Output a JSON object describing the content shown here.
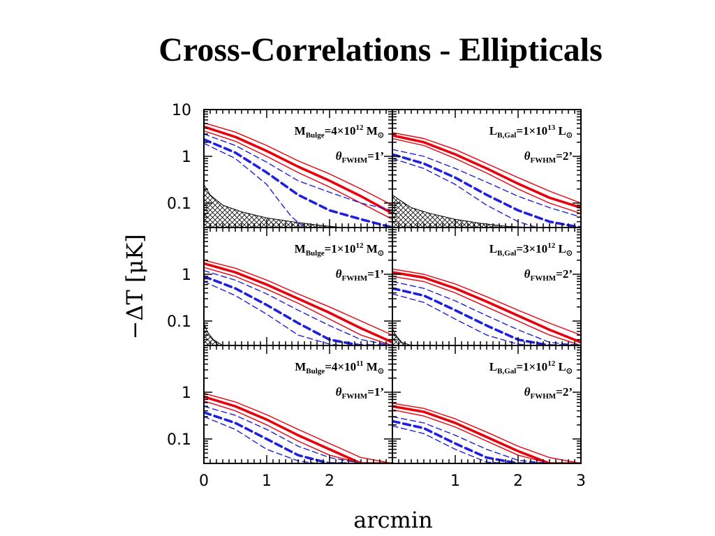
{
  "slide": {
    "title": "Cross-Correlations - Ellipticals"
  },
  "chart_data": {
    "type": "line",
    "layout": "3 rows x 2 columns of panels sharing axes",
    "xlabel": "arcmin",
    "ylabel": "−ΔT [μK]",
    "xlim": [
      0,
      3
    ],
    "ylim": [
      0.03,
      10
    ],
    "yscale": "log",
    "xticks": [
      {
        "value": 0,
        "label": "0"
      },
      {
        "value": 1,
        "label": "1"
      },
      {
        "value": 2,
        "label": "2"
      },
      {
        "value": 3,
        "label": "3"
      }
    ],
    "yticks": [
      {
        "value": 10,
        "label": "10"
      },
      {
        "value": 1,
        "label": "1"
      },
      {
        "value": 0.1,
        "label": "0.1"
      }
    ],
    "colors": {
      "model_solid": "#e8000b",
      "model_dashed": "#1f1fe0",
      "noise_hatch": "#000000"
    },
    "panels": [
      {
        "row": 0,
        "col": 0,
        "annotation": {
          "var": "M",
          "sub": "Bulge",
          "mantissa": "4",
          "exponent": "12",
          "unit": "M",
          "beam": "1"
        },
        "series": [
          {
            "style": "solid-thick",
            "x": [
              0,
              0.5,
              1,
              1.5,
              2,
              2.5,
              3
            ],
            "y": [
              4.3,
              2.6,
              1.3,
              0.6,
              0.3,
              0.14,
              0.06
            ]
          },
          {
            "style": "solid-thin",
            "x": [
              0,
              0.5,
              1,
              1.5,
              2,
              2.5,
              3
            ],
            "y": [
              5.2,
              3.3,
              1.7,
              0.8,
              0.42,
              0.2,
              0.09
            ]
          },
          {
            "style": "solid-thin",
            "x": [
              0,
              0.5,
              1,
              1.5,
              2,
              2.5,
              3
            ],
            "y": [
              3.5,
              2.1,
              1.0,
              0.45,
              0.22,
              0.1,
              0.045
            ]
          },
          {
            "style": "dashed-thick",
            "x": [
              0,
              0.5,
              1,
              1.5,
              2,
              2.5,
              3
            ],
            "y": [
              2.3,
              1.2,
              0.45,
              0.15,
              0.07,
              0.045,
              0.03
            ]
          },
          {
            "style": "dashed-thin",
            "x": [
              0,
              0.5,
              1,
              1.5,
              2,
              2.5,
              3
            ],
            "y": [
              3.0,
              1.7,
              0.75,
              0.3,
              0.17,
              0.1,
              0.07
            ]
          },
          {
            "style": "dashed-thin",
            "x": [
              0,
              0.5,
              1,
              1.2,
              1.4,
              1.6
            ],
            "y": [
              1.9,
              0.9,
              0.25,
              0.11,
              0.05,
              0.03
            ]
          }
        ],
        "noise_band": {
          "x": [
            0,
            0.1,
            0.3,
            0.6,
            1.0,
            1.4,
            1.8,
            2.2
          ],
          "upper": [
            0.25,
            0.15,
            0.09,
            0.065,
            0.048,
            0.04,
            0.034,
            0.03
          ]
        }
      },
      {
        "row": 0,
        "col": 1,
        "annotation": {
          "var": "L",
          "sub": "B,Gal",
          "mantissa": "1",
          "exponent": "13",
          "unit": "L",
          "beam": "2"
        },
        "series": [
          {
            "style": "solid-thick",
            "x": [
              0,
              0.5,
              1,
              1.5,
              2,
              2.5,
              3
            ],
            "y": [
              2.8,
              2.0,
              1.1,
              0.55,
              0.26,
              0.13,
              0.08
            ]
          },
          {
            "style": "solid-thin",
            "x": [
              0,
              0.5,
              1,
              1.5,
              2,
              2.5,
              3
            ],
            "y": [
              3.2,
              2.4,
              1.4,
              0.7,
              0.35,
              0.18,
              0.1
            ]
          },
          {
            "style": "solid-thin",
            "x": [
              0,
              0.5,
              1,
              1.5,
              2,
              2.5,
              3
            ],
            "y": [
              2.4,
              1.7,
              0.9,
              0.44,
              0.2,
              0.1,
              0.06
            ]
          },
          {
            "style": "dashed-thick",
            "x": [
              0,
              0.5,
              1,
              1.5,
              2,
              2.5,
              3
            ],
            "y": [
              1.1,
              0.7,
              0.35,
              0.15,
              0.07,
              0.04,
              0.03
            ]
          },
          {
            "style": "dashed-thin",
            "x": [
              0,
              0.5,
              1,
              1.5,
              2,
              2.5,
              3
            ],
            "y": [
              1.4,
              1.0,
              0.55,
              0.28,
              0.14,
              0.08,
              0.05
            ]
          },
          {
            "style": "dashed-thin",
            "x": [
              0,
              0.5,
              1,
              1.5,
              2,
              2.3
            ],
            "y": [
              0.9,
              0.55,
              0.25,
              0.09,
              0.04,
              0.03
            ]
          }
        ],
        "noise_band": {
          "x": [
            0,
            0.1,
            0.3,
            0.6,
            1.0,
            1.4,
            1.8,
            2.2
          ],
          "upper": [
            0.15,
            0.12,
            0.08,
            0.06,
            0.045,
            0.037,
            0.032,
            0.03
          ]
        }
      },
      {
        "row": 1,
        "col": 0,
        "annotation": {
          "var": "M",
          "sub": "Bulge",
          "mantissa": "1",
          "exponent": "12",
          "unit": "M",
          "beam": "1"
        },
        "series": [
          {
            "style": "solid-thick",
            "x": [
              0,
              0.5,
              1,
              1.5,
              2,
              2.5,
              3
            ],
            "y": [
              1.7,
              1.1,
              0.6,
              0.3,
              0.15,
              0.07,
              0.035
            ]
          },
          {
            "style": "solid-thin",
            "x": [
              0,
              0.5,
              1,
              1.5,
              2,
              2.5,
              3
            ],
            "y": [
              2.0,
              1.35,
              0.75,
              0.38,
              0.2,
              0.1,
              0.05
            ]
          },
          {
            "style": "solid-thin",
            "x": [
              0,
              0.5,
              1,
              1.5,
              2,
              2.5,
              3
            ],
            "y": [
              1.4,
              0.9,
              0.48,
              0.24,
              0.11,
              0.05,
              0.03
            ]
          },
          {
            "style": "dashed-thick",
            "x": [
              0,
              0.5,
              1,
              1.5,
              2,
              2.5,
              3
            ],
            "y": [
              0.9,
              0.5,
              0.22,
              0.09,
              0.04,
              0.03,
              0.03
            ]
          },
          {
            "style": "dashed-thin",
            "x": [
              0,
              0.5,
              1,
              1.5,
              2,
              2.5,
              3
            ],
            "y": [
              1.2,
              0.75,
              0.38,
              0.17,
              0.08,
              0.04,
              0.03
            ]
          },
          {
            "style": "dashed-thin",
            "x": [
              0,
              0.5,
              1,
              1.5,
              2,
              2.2
            ],
            "y": [
              0.7,
              0.35,
              0.14,
              0.05,
              0.032,
              0.03
            ]
          }
        ],
        "noise_band": {
          "x": [
            0,
            0.05,
            0.15,
            0.3
          ],
          "upper": [
            0.09,
            0.06,
            0.04,
            0.03
          ]
        }
      },
      {
        "row": 1,
        "col": 1,
        "annotation": {
          "var": "L",
          "sub": "B,Gal",
          "mantissa": "3",
          "exponent": "12",
          "unit": "L",
          "beam": "2"
        },
        "series": [
          {
            "style": "solid-thick",
            "x": [
              0,
              0.5,
              1,
              1.5,
              2,
              2.5,
              3
            ],
            "y": [
              1.1,
              0.85,
              0.5,
              0.26,
              0.13,
              0.065,
              0.035
            ]
          },
          {
            "style": "solid-thin",
            "x": [
              0,
              0.5,
              1,
              1.5,
              2,
              2.5,
              3
            ],
            "y": [
              1.3,
              1.0,
              0.62,
              0.33,
              0.17,
              0.09,
              0.05
            ]
          },
          {
            "style": "solid-thin",
            "x": [
              0,
              0.5,
              1,
              1.5,
              2,
              2.5,
              3
            ],
            "y": [
              0.9,
              0.7,
              0.4,
              0.2,
              0.1,
              0.05,
              0.03
            ]
          },
          {
            "style": "dashed-thick",
            "x": [
              0,
              0.5,
              1,
              1.5,
              2,
              2.5,
              3
            ],
            "y": [
              0.5,
              0.35,
              0.17,
              0.08,
              0.04,
              0.03,
              0.03
            ]
          },
          {
            "style": "dashed-thin",
            "x": [
              0,
              0.5,
              1,
              1.5,
              2,
              2.5,
              3
            ],
            "y": [
              0.7,
              0.5,
              0.27,
              0.13,
              0.065,
              0.035,
              0.03
            ]
          },
          {
            "style": "dashed-thin",
            "x": [
              0,
              0.5,
              1,
              1.5,
              2,
              2.2
            ],
            "y": [
              0.38,
              0.25,
              0.11,
              0.05,
              0.032,
              0.03
            ]
          }
        ],
        "noise_band": {
          "x": [
            0,
            0.05,
            0.15,
            0.3
          ],
          "upper": [
            0.07,
            0.05,
            0.035,
            0.03
          ]
        }
      },
      {
        "row": 2,
        "col": 0,
        "annotation": {
          "var": "M",
          "sub": "Bulge",
          "mantissa": "4",
          "exponent": "11",
          "unit": "M",
          "beam": "1"
        },
        "series": [
          {
            "style": "solid-thick",
            "x": [
              0,
              0.5,
              1,
              1.5,
              2,
              2.5,
              3
            ],
            "y": [
              0.8,
              0.5,
              0.26,
              0.12,
              0.06,
              0.03,
              0.03
            ]
          },
          {
            "style": "solid-thin",
            "x": [
              0,
              0.5,
              1,
              1.5,
              2,
              2.5,
              3
            ],
            "y": [
              0.95,
              0.62,
              0.33,
              0.16,
              0.08,
              0.04,
              0.03
            ]
          },
          {
            "style": "solid-thin",
            "x": [
              0,
              0.5,
              1,
              1.5,
              2,
              2.5,
              3
            ],
            "y": [
              0.65,
              0.4,
              0.2,
              0.09,
              0.045,
              0.03,
              0.03
            ]
          },
          {
            "style": "dashed-thick",
            "x": [
              0,
              0.5,
              1,
              1.5,
              2,
              2.3
            ],
            "y": [
              0.37,
              0.22,
              0.1,
              0.045,
              0.03,
              0.03
            ]
          },
          {
            "style": "dashed-thin",
            "x": [
              0,
              0.5,
              1,
              1.5,
              2,
              2.5
            ],
            "y": [
              0.5,
              0.32,
              0.16,
              0.07,
              0.04,
              0.03
            ]
          },
          {
            "style": "dashed-thin",
            "x": [
              0,
              0.5,
              1,
              1.5,
              1.8
            ],
            "y": [
              0.3,
              0.16,
              0.06,
              0.034,
              0.03
            ]
          }
        ]
      },
      {
        "row": 2,
        "col": 1,
        "annotation": {
          "var": "L",
          "sub": "B,Gal",
          "mantissa": "1",
          "exponent": "12",
          "unit": "L",
          "beam": "2"
        },
        "series": [
          {
            "style": "solid-thick",
            "x": [
              0,
              0.5,
              1,
              1.5,
              2,
              2.5,
              3
            ],
            "y": [
              0.5,
              0.38,
              0.22,
              0.11,
              0.055,
              0.03,
              0.03
            ]
          },
          {
            "style": "solid-thin",
            "x": [
              0,
              0.5,
              1,
              1.5,
              2,
              2.5,
              3
            ],
            "y": [
              0.58,
              0.45,
              0.27,
              0.14,
              0.07,
              0.04,
              0.03
            ]
          },
          {
            "style": "solid-thin",
            "x": [
              0,
              0.5,
              1,
              1.5,
              2,
              2.5,
              3
            ],
            "y": [
              0.42,
              0.31,
              0.18,
              0.09,
              0.045,
              0.03,
              0.03
            ]
          },
          {
            "style": "dashed-thick",
            "x": [
              0,
              0.5,
              1,
              1.5,
              2,
              2.3
            ],
            "y": [
              0.24,
              0.17,
              0.08,
              0.04,
              0.03,
              0.03
            ]
          },
          {
            "style": "dashed-thin",
            "x": [
              0,
              0.5,
              1,
              1.5,
              2,
              2.5,
              3
            ],
            "y": [
              0.3,
              0.22,
              0.12,
              0.06,
              0.035,
              0.03,
              0.03
            ]
          },
          {
            "style": "dashed-thin",
            "x": [
              0,
              0.5,
              1,
              1.5,
              1.9
            ],
            "y": [
              0.19,
              0.13,
              0.06,
              0.032,
              0.03
            ]
          }
        ]
      }
    ]
  }
}
